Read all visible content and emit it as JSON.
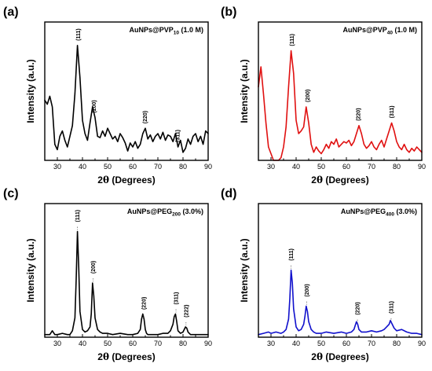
{
  "chart_data": [
    {
      "type": "line",
      "panel_label": "(a)",
      "title_prefix": "AuNPs@PVP",
      "title_subscript": "10",
      "title_suffix": "(1.0 M)",
      "xlabel_prefix": "2",
      "xlabel_symbol": "θ",
      "xlabel_suffix": " (Degrees)",
      "ylabel": "Intensity (a.u.)",
      "xlim": [
        25,
        90
      ],
      "ylim": [
        0,
        1
      ],
      "x_ticks": [
        30,
        40,
        50,
        60,
        70,
        80,
        90
      ],
      "series": [
        {
          "color": "#000000",
          "x": [
            25,
            26,
            27,
            28,
            29,
            30,
            31,
            32,
            33,
            34,
            35,
            36,
            37,
            38,
            39,
            40,
            41,
            42,
            43,
            44,
            45,
            46,
            47,
            48,
            49,
            50,
            51,
            52,
            53,
            54,
            55,
            56,
            57,
            58,
            59,
            60,
            61,
            62,
            63,
            64,
            65,
            66,
            67,
            68,
            69,
            70,
            71,
            72,
            73,
            74,
            75,
            76,
            77,
            78,
            79,
            80,
            81,
            82,
            83,
            84,
            85,
            86,
            87,
            88,
            89,
            90
          ],
          "values": [
            0.45,
            0.42,
            0.48,
            0.4,
            0.12,
            0.08,
            0.18,
            0.22,
            0.15,
            0.1,
            0.18,
            0.26,
            0.5,
            0.86,
            0.62,
            0.3,
            0.2,
            0.15,
            0.28,
            0.4,
            0.32,
            0.18,
            0.17,
            0.22,
            0.18,
            0.24,
            0.2,
            0.16,
            0.18,
            0.14,
            0.2,
            0.17,
            0.13,
            0.07,
            0.13,
            0.1,
            0.14,
            0.09,
            0.12,
            0.2,
            0.24,
            0.16,
            0.19,
            0.14,
            0.18,
            0.2,
            0.16,
            0.21,
            0.15,
            0.19,
            0.18,
            0.14,
            0.2,
            0.1,
            0.15,
            0.06,
            0.09,
            0.16,
            0.12,
            0.18,
            0.2,
            0.14,
            0.18,
            0.12,
            0.22,
            0.2
          ]
        }
      ],
      "peaks": [
        {
          "label": "(111)",
          "x": 38.3
        },
        {
          "label": "(200)",
          "x": 44.6
        },
        {
          "label": "(220)",
          "x": 64.8
        },
        {
          "label": "(311)",
          "x": 77.8
        }
      ]
    },
    {
      "type": "line",
      "panel_label": "(b)",
      "title_prefix": "AuNPs@PVP",
      "title_subscript": "40",
      "title_suffix": "(1.0 M)",
      "xlabel_prefix": "2",
      "xlabel_symbol": "θ",
      "xlabel_suffix": " (Degrees)",
      "ylabel": "Intensity (a.u.)",
      "xlim": [
        25,
        90
      ],
      "ylim": [
        0,
        1
      ],
      "x_ticks": [
        30,
        40,
        50,
        60,
        70,
        80,
        90
      ],
      "series": [
        {
          "color": "#e01010",
          "x": [
            25,
            26,
            27,
            28,
            29,
            30,
            31,
            32,
            33,
            34,
            35,
            36,
            37,
            38,
            39,
            40,
            41,
            42,
            43,
            44,
            45,
            46,
            47,
            48,
            49,
            50,
            51,
            52,
            53,
            54,
            55,
            56,
            57,
            58,
            59,
            60,
            61,
            62,
            63,
            64,
            65,
            66,
            67,
            68,
            69,
            70,
            71,
            72,
            73,
            74,
            75,
            76,
            77,
            78,
            79,
            80,
            81,
            82,
            83,
            84,
            85,
            86,
            87,
            88,
            89,
            90
          ],
          "values": [
            0.55,
            0.7,
            0.5,
            0.28,
            0.1,
            0.05,
            0.0,
            0.0,
            0.0,
            0.02,
            0.1,
            0.25,
            0.55,
            0.82,
            0.65,
            0.3,
            0.2,
            0.22,
            0.25,
            0.4,
            0.28,
            0.12,
            0.06,
            0.1,
            0.07,
            0.05,
            0.08,
            0.12,
            0.09,
            0.14,
            0.12,
            0.16,
            0.1,
            0.12,
            0.14,
            0.13,
            0.15,
            0.11,
            0.14,
            0.2,
            0.26,
            0.2,
            0.12,
            0.09,
            0.11,
            0.14,
            0.1,
            0.08,
            0.12,
            0.15,
            0.1,
            0.16,
            0.22,
            0.28,
            0.22,
            0.14,
            0.1,
            0.08,
            0.12,
            0.08,
            0.06,
            0.09,
            0.07,
            0.1,
            0.08,
            0.06
          ]
        }
      ],
      "peaks": [
        {
          "label": "(111)",
          "x": 38.3
        },
        {
          "label": "(200)",
          "x": 44.5
        },
        {
          "label": "(220)",
          "x": 64.7
        },
        {
          "label": "(311)",
          "x": 77.9
        }
      ]
    },
    {
      "type": "line",
      "panel_label": "(c)",
      "title_prefix": "AuNPs@PEG",
      "title_subscript": "200",
      "title_suffix": "(3.0%)",
      "xlabel_prefix": "2",
      "xlabel_symbol": "θ",
      "xlabel_suffix": " (Degrees)",
      "ylabel": "Intensity (a.u.)",
      "xlim": [
        25,
        90
      ],
      "ylim": [
        0,
        1
      ],
      "x_ticks": [
        30,
        40,
        50,
        60,
        70,
        80,
        90
      ],
      "series": [
        {
          "color": "#000000",
          "x": [
            25,
            27,
            28,
            29,
            30,
            32,
            34,
            35,
            36,
            37,
            37.5,
            38,
            38.5,
            39,
            40,
            41,
            42,
            43,
            43.5,
            44,
            44.5,
            45,
            46,
            47,
            48,
            50,
            52,
            55,
            58,
            60,
            62,
            63,
            63.5,
            64,
            64.5,
            65,
            65.5,
            66,
            68,
            70,
            72,
            74,
            75,
            76,
            76.5,
            77,
            77.5,
            78,
            79,
            80,
            81,
            81.5,
            82,
            83,
            85,
            88,
            90
          ],
          "values": [
            0.02,
            0.02,
            0.05,
            0.02,
            0.02,
            0.03,
            0.02,
            0.02,
            0.05,
            0.15,
            0.45,
            0.82,
            0.55,
            0.2,
            0.06,
            0.04,
            0.05,
            0.08,
            0.18,
            0.42,
            0.32,
            0.15,
            0.06,
            0.04,
            0.03,
            0.03,
            0.02,
            0.03,
            0.02,
            0.02,
            0.03,
            0.06,
            0.14,
            0.18,
            0.14,
            0.06,
            0.03,
            0.02,
            0.02,
            0.02,
            0.03,
            0.03,
            0.05,
            0.1,
            0.16,
            0.18,
            0.12,
            0.05,
            0.03,
            0.04,
            0.08,
            0.07,
            0.04,
            0.02,
            0.02,
            0.02,
            0.02
          ]
        }
      ],
      "peaks": [
        {
          "label": "(111)",
          "x": 38.0
        },
        {
          "label": "(200)",
          "x": 44.2
        },
        {
          "label": "(220)",
          "x": 64.3
        },
        {
          "label": "(311)",
          "x": 77.2
        },
        {
          "label": "(222)",
          "x": 81.2
        }
      ]
    },
    {
      "type": "line",
      "panel_label": "(d)",
      "title_prefix": "AuNPs@PEG",
      "title_subscript": "400",
      "title_suffix": "(3.0%)",
      "xlabel_prefix": "2",
      "xlabel_symbol": "θ",
      "xlabel_suffix": " (Degrees)",
      "ylabel": "Intensity (a.u.)",
      "xlim": [
        25,
        90
      ],
      "ylim": [
        0,
        1
      ],
      "x_ticks": [
        30,
        40,
        50,
        60,
        70,
        80,
        90
      ],
      "series": [
        {
          "color": "#1010cc",
          "x": [
            25,
            27,
            29,
            30,
            32,
            34,
            35,
            36,
            37,
            37.5,
            38,
            38.5,
            39,
            40,
            41,
            42,
            43,
            43.5,
            44,
            44.5,
            45,
            46,
            47,
            48,
            50,
            52,
            55,
            58,
            60,
            62,
            63,
            63.5,
            64,
            64.5,
            65,
            66,
            68,
            70,
            72,
            74,
            75,
            76,
            77,
            77.5,
            78,
            79,
            80,
            82,
            84,
            86,
            88,
            90
          ],
          "values": [
            0.02,
            0.03,
            0.04,
            0.03,
            0.04,
            0.03,
            0.04,
            0.06,
            0.14,
            0.3,
            0.52,
            0.42,
            0.22,
            0.08,
            0.05,
            0.06,
            0.1,
            0.16,
            0.24,
            0.2,
            0.12,
            0.06,
            0.04,
            0.03,
            0.03,
            0.04,
            0.03,
            0.04,
            0.03,
            0.04,
            0.06,
            0.09,
            0.12,
            0.1,
            0.06,
            0.04,
            0.04,
            0.05,
            0.04,
            0.05,
            0.06,
            0.08,
            0.1,
            0.13,
            0.11,
            0.07,
            0.05,
            0.06,
            0.04,
            0.03,
            0.03,
            0.02
          ]
        }
      ],
      "peaks": [
        {
          "label": "(111)",
          "x": 38.0
        },
        {
          "label": "(200)",
          "x": 44.2
        },
        {
          "label": "(220)",
          "x": 64.4
        },
        {
          "label": "(311)",
          "x": 77.8
        }
      ]
    }
  ]
}
